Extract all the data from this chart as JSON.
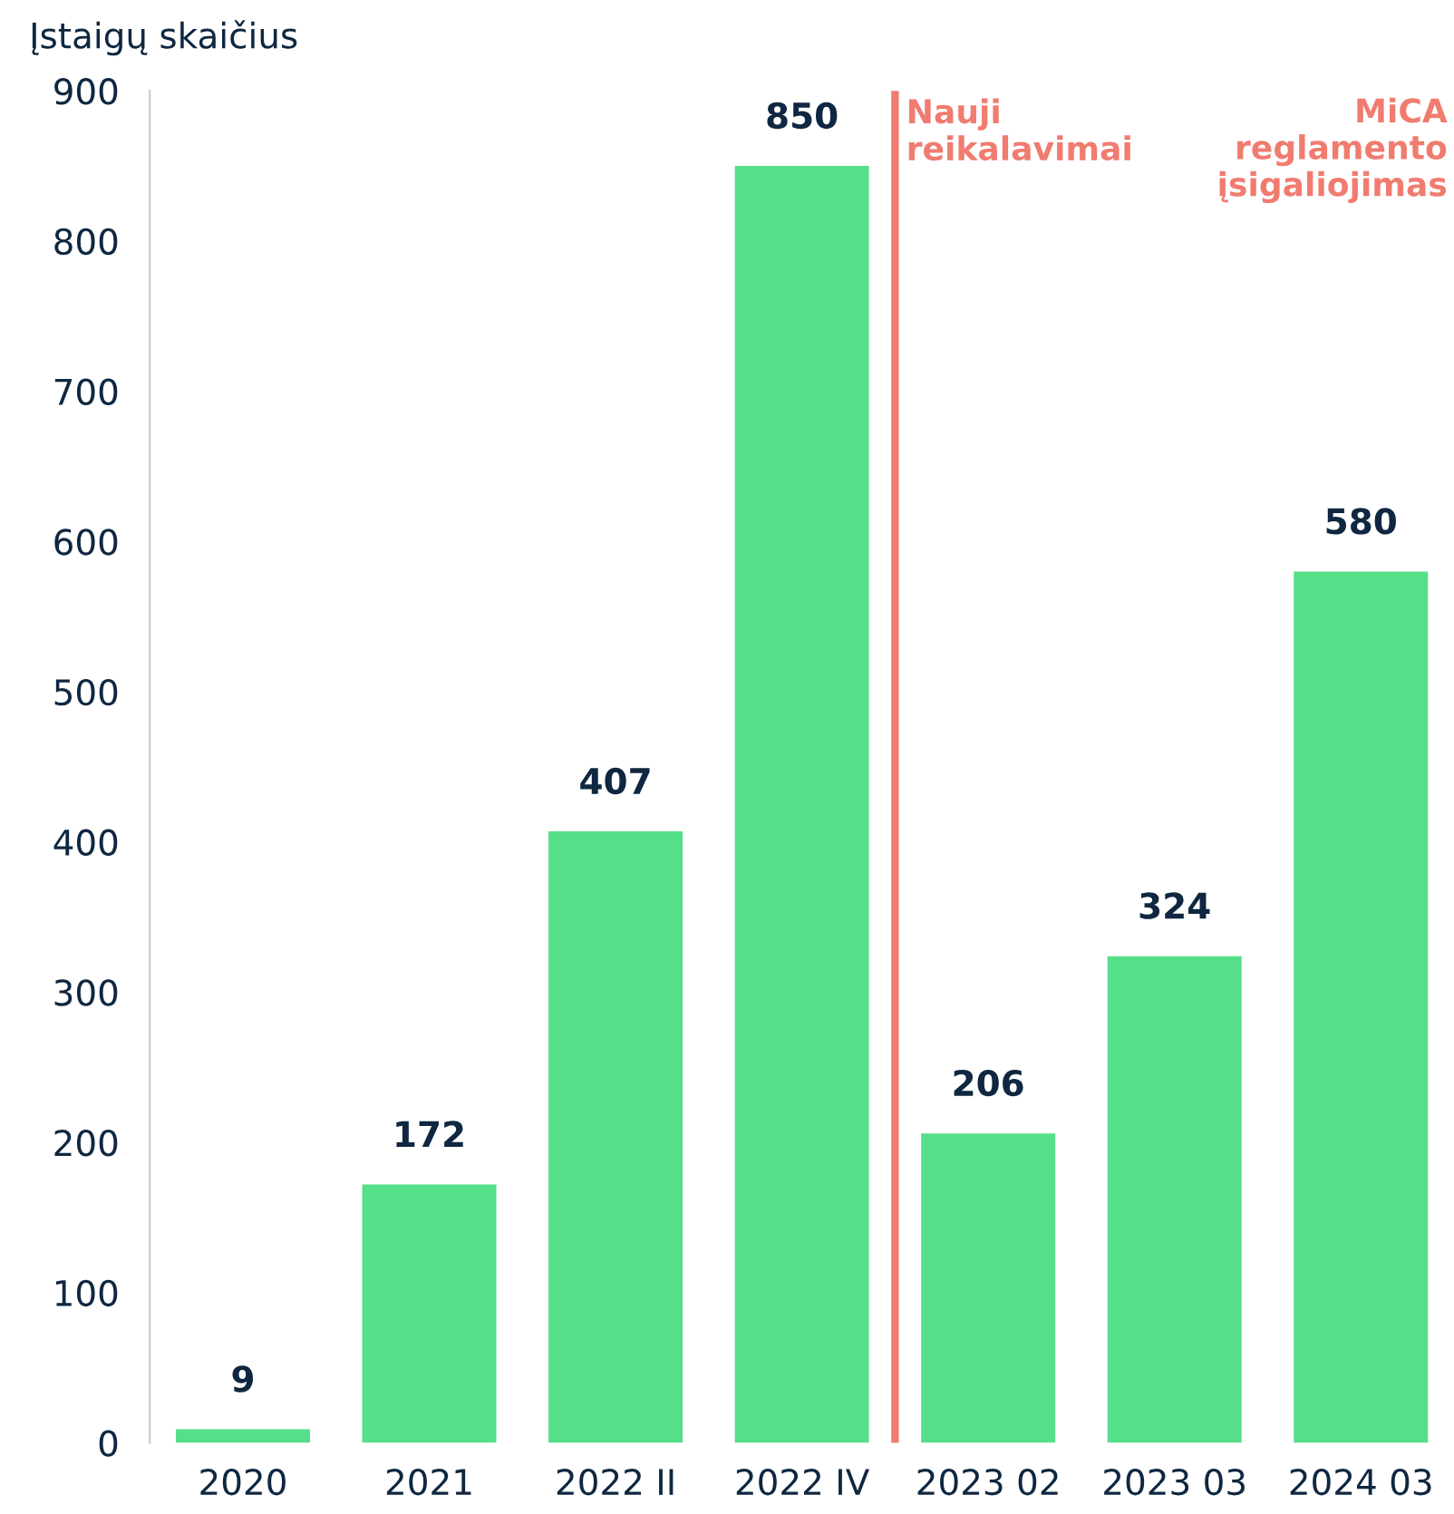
{
  "chart_data": {
    "type": "bar",
    "ylabel": "Įstaigų skaičius",
    "categories": [
      "2020",
      "2021",
      "2022 II",
      "2022 IV",
      "2023 02",
      "2023 03",
      "2024 03"
    ],
    "values": [
      9,
      172,
      407,
      850,
      206,
      324,
      580
    ],
    "color": "#55df88",
    "data_labels": true,
    "ylim": [
      0,
      900
    ],
    "yticks": [
      0,
      100,
      200,
      300,
      400,
      500,
      600,
      700,
      800,
      900
    ],
    "grid": false,
    "legend": false,
    "ref_lines": [
      {
        "axis": "x",
        "value": "2023 02",
        "label": "Nauji\nreikalavimai",
        "color": "#f07c70"
      }
    ],
    "annotations": [
      "MiCA\nreglamento\nįsigaliojimas"
    ]
  }
}
